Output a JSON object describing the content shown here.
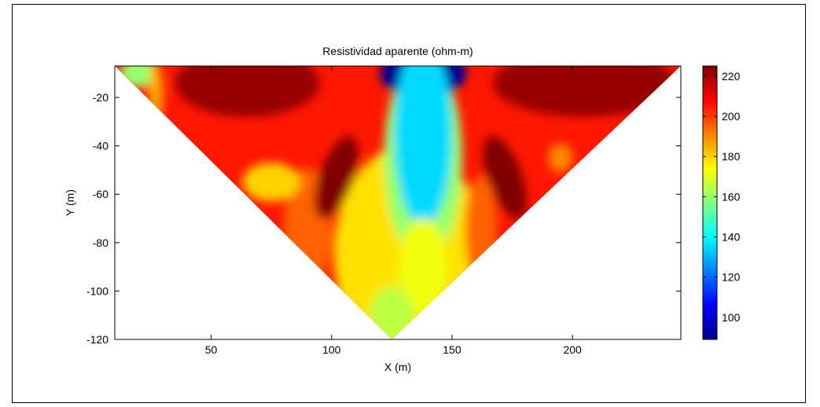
{
  "chart_data": {
    "type": "heatmap",
    "title": "Resistividad aparente (ohm-m)",
    "xlabel": "X (m)",
    "ylabel": "Y (m)",
    "xlim": [
      10,
      245
    ],
    "ylim": [
      -120,
      -7
    ],
    "xticks": [
      50,
      100,
      150,
      200
    ],
    "yticks": [
      -20,
      -40,
      -60,
      -80,
      -100,
      -120
    ],
    "colorbar": {
      "min": 89,
      "max": 225,
      "ticks": [
        100,
        120,
        140,
        160,
        180,
        200,
        220
      ],
      "colormap": "jet"
    },
    "grid": false,
    "profile": "pseudosection-triangle",
    "triangle": {
      "top_left_x": 10,
      "top_right_x": 245,
      "top_y": -7,
      "apex_x": 125,
      "apex_y": -120
    },
    "anomalies": [
      {
        "x": 65,
        "y": -14,
        "rx": 30,
        "ry": 14,
        "value": 222
      },
      {
        "x": 205,
        "y": -14,
        "rx": 38,
        "ry": 14,
        "value": 222
      },
      {
        "x": 102,
        "y": -53,
        "rx": 7,
        "ry": 18,
        "value": 225
      },
      {
        "x": 172,
        "y": -53,
        "rx": 7,
        "ry": 18,
        "value": 225
      },
      {
        "x": 138,
        "y": -10,
        "rx": 18,
        "ry": 10,
        "value": 92
      },
      {
        "x": 138,
        "y": -35,
        "rx": 12,
        "ry": 38,
        "value": 135
      },
      {
        "x": 138,
        "y": -90,
        "rx": 10,
        "ry": 20,
        "value": 172
      },
      {
        "x": 125,
        "y": -110,
        "rx": 9,
        "ry": 12,
        "value": 165
      },
      {
        "x": 75,
        "y": -55,
        "rx": 12,
        "ry": 8,
        "value": 180
      },
      {
        "x": 20,
        "y": -10,
        "rx": 8,
        "ry": 6,
        "value": 160
      },
      {
        "x": 27,
        "y": -18,
        "rx": 3,
        "ry": 12,
        "value": 185
      },
      {
        "x": 195,
        "y": -45,
        "rx": 5,
        "ry": 6,
        "value": 190
      }
    ]
  }
}
